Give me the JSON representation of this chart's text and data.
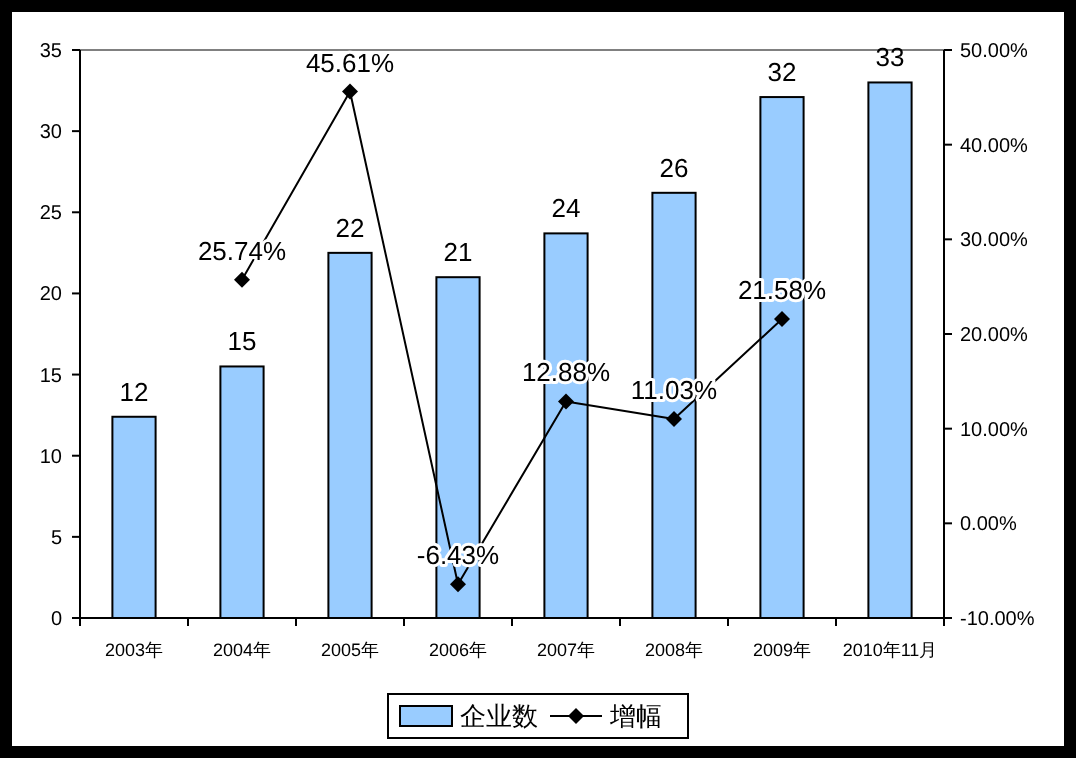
{
  "chart_data": {
    "type": "bar",
    "categories": [
      "2003年",
      "2004年",
      "2005年",
      "2006年",
      "2007年",
      "2008年",
      "2009年",
      "2010年11月"
    ],
    "series": [
      {
        "name": "企业数",
        "color": "#99ccff",
        "values": [
          12.4,
          15.5,
          22.5,
          21.0,
          23.7,
          26.2,
          32.1,
          33.0
        ],
        "value_labels": [
          "12",
          "15",
          "22",
          "21",
          "24",
          "26",
          "32",
          "33"
        ]
      },
      {
        "name": "增幅",
        "type": "line",
        "axis": "y2",
        "color": "#000000",
        "marker": "diamond",
        "values": [
          null,
          25.74,
          45.61,
          -6.43,
          12.88,
          11.03,
          21.58,
          null
        ],
        "value_labels": [
          null,
          "25.74%",
          "45.61%",
          "-6.43%",
          "12.88%",
          "11.03%",
          "21.58%",
          null
        ]
      }
    ],
    "ylim": [
      0,
      35
    ],
    "yticks": [
      0,
      5,
      10,
      15,
      20,
      25,
      30,
      35
    ],
    "y2lim": [
      -10,
      50
    ],
    "y2ticks": [
      {
        "value": -10,
        "label": "-10.00%"
      },
      {
        "value": 0,
        "label": "0.00%"
      },
      {
        "value": 10,
        "label": "10.00%"
      },
      {
        "value": 20,
        "label": "20.00%"
      },
      {
        "value": 30,
        "label": "30.00%"
      },
      {
        "value": 40,
        "label": "40.00%"
      },
      {
        "value": 50,
        "label": "50.00%"
      }
    ],
    "legend": "bottom"
  }
}
